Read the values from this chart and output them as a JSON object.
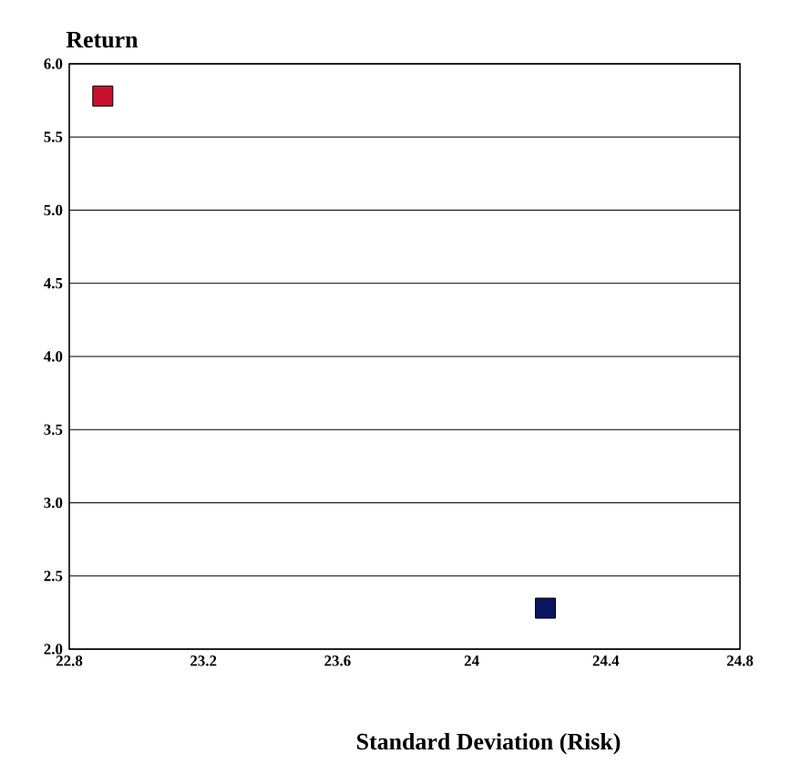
{
  "chart_data": {
    "type": "scatter",
    "xlabel": "Standard Deviation (Risk)",
    "ylabel": "Return",
    "x": [
      22.9,
      24.22
    ],
    "values": [
      5.78,
      2.28
    ],
    "colors": [
      "#c8102e",
      "#0b1560"
    ],
    "marker": "square",
    "xlim": [
      22.8,
      24.8
    ],
    "xticks": [
      22.8,
      23.2,
      23.6,
      24,
      24.4,
      24.8
    ],
    "ylim": [
      2.0,
      6.0
    ],
    "yticks": [
      {
        "value": 2.0,
        "label": "2.0"
      },
      {
        "value": 2.5,
        "label": "2.5"
      },
      {
        "value": 3.0,
        "label": "3.0"
      },
      {
        "value": 3.5,
        "label": "3.5"
      },
      {
        "value": 4.0,
        "label": "4.0"
      },
      {
        "value": 4.5,
        "label": "4.5"
      },
      {
        "value": 5.0,
        "label": "5.0"
      },
      {
        "value": 5.5,
        "label": "5.5"
      },
      {
        "value": 6.0,
        "label": "6.0"
      }
    ],
    "grid": "y"
  }
}
